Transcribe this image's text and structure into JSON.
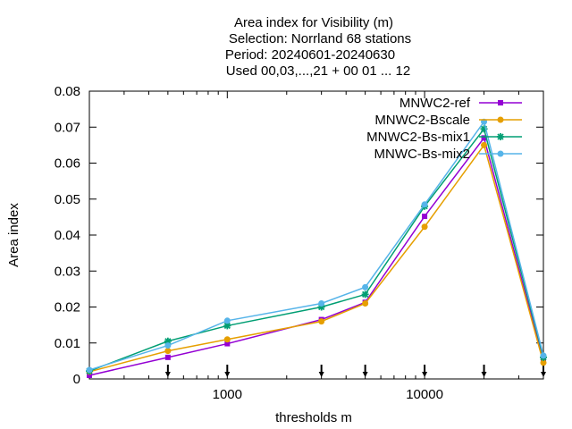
{
  "chart_data": {
    "type": "line",
    "title_lines": [
      "Area index  for Visibility (m)",
      "Selection: Norrland     68 stations",
      "Period: 20240601-20240630",
      "Used 00,03,...,21 + 00 01 ... 12"
    ],
    "xlabel": "thresholds m",
    "ylabel": "Area index",
    "x_scale": "log",
    "xlim": [
      200,
      40000
    ],
    "ylim": [
      0,
      0.08
    ],
    "x_ticks": [
      1000,
      10000
    ],
    "x_tick_labels": [
      "1000",
      "10000"
    ],
    "y_ticks": [
      0,
      0.01,
      0.02,
      0.03,
      0.04,
      0.05,
      0.06,
      0.07,
      0.08
    ],
    "y_tick_labels": [
      "0",
      "0.01",
      "0.02",
      "0.03",
      "0.04",
      "0.05",
      "0.06",
      "0.07",
      "0.08"
    ],
    "threshold_markers": [
      500,
      1000,
      3000,
      5000,
      10000,
      20000,
      40000
    ],
    "x": [
      200,
      500,
      1000,
      3000,
      5000,
      10000,
      20000,
      40000
    ],
    "grid": false,
    "legend_position": "top-right",
    "series": [
      {
        "name": "MNWC2-ref",
        "color": "#9400d3",
        "marker": "square",
        "values": [
          0.001,
          0.006,
          0.0098,
          0.0165,
          0.0213,
          0.0452,
          0.067,
          0.005
        ]
      },
      {
        "name": "MNWC2-Bscale",
        "color": "#e69f00",
        "marker": "circle",
        "values": [
          0.002,
          0.0078,
          0.011,
          0.016,
          0.021,
          0.0423,
          0.065,
          0.0045
        ]
      },
      {
        "name": "MNWC2-Bs-mix1",
        "color": "#009e73",
        "marker": "star",
        "values": [
          0.0022,
          0.0105,
          0.0148,
          0.02,
          0.0235,
          0.048,
          0.0695,
          0.006
        ]
      },
      {
        "name": "MNWC-Bs-mix2",
        "color": "#56b4e9",
        "marker": "circle",
        "values": [
          0.0025,
          0.0093,
          0.0162,
          0.021,
          0.0255,
          0.0485,
          0.0715,
          0.0065
        ]
      }
    ]
  }
}
